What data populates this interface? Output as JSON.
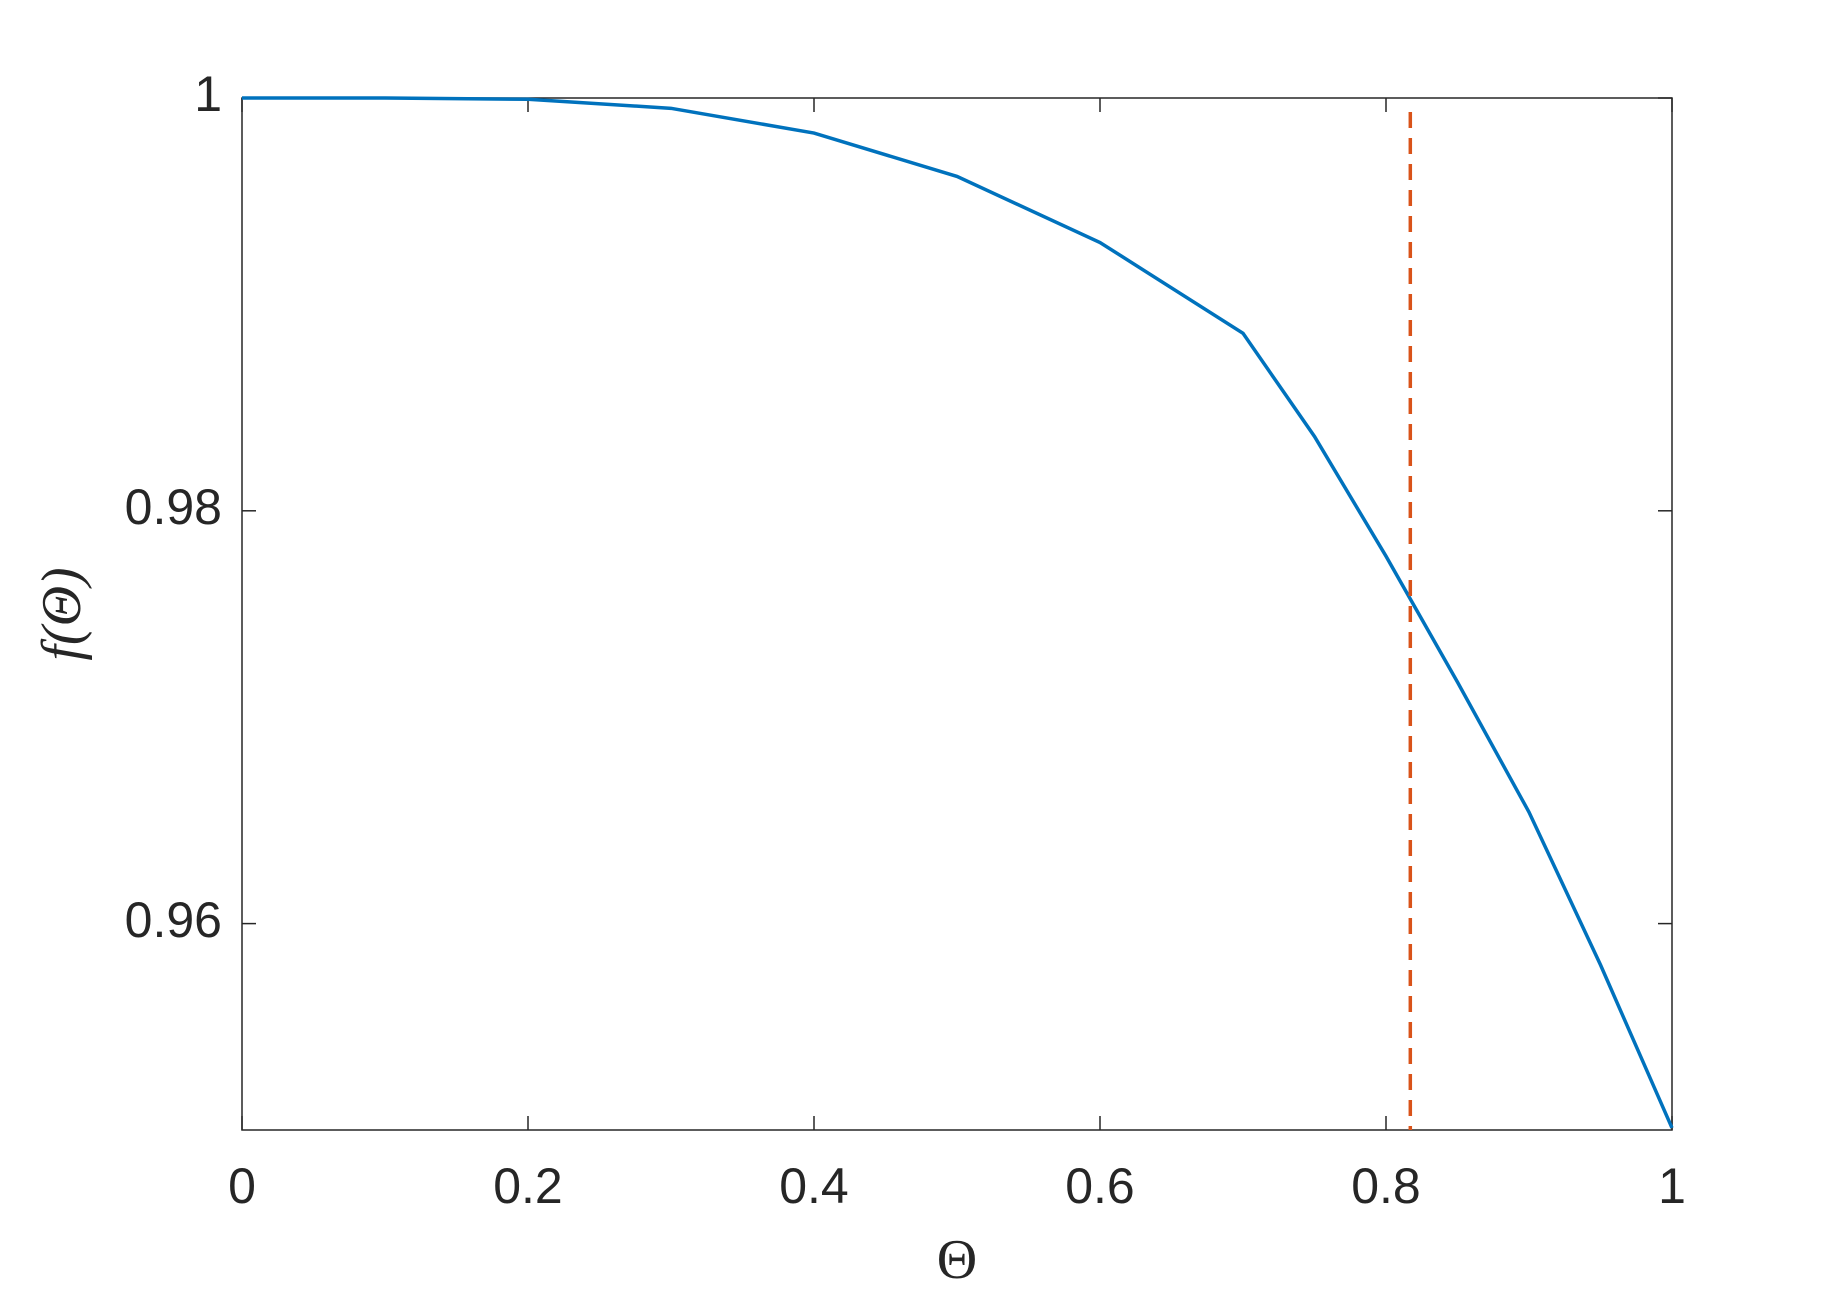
{
  "chart_data": {
    "type": "line",
    "x_label": "Θ",
    "y_label": "f(Θ)",
    "x": [
      0,
      0.1,
      0.2,
      0.3,
      0.4,
      0.5,
      0.6,
      0.7,
      0.75,
      0.8,
      0.85,
      0.9,
      0.95,
      1.0
    ],
    "series": [
      {
        "name": "f",
        "color": "#0072bd",
        "values": [
          1.0,
          1.0,
          0.99994,
          0.9995,
          0.9983,
          0.9962,
          0.993,
          0.9886,
          0.9836,
          0.9778,
          0.9717,
          0.9654,
          0.958,
          0.9501
        ]
      }
    ],
    "vline": {
      "x": 0.817,
      "color": "#d95319"
    },
    "xlim": [
      0,
      1
    ],
    "xticks": [
      0,
      0.2,
      0.4,
      0.6,
      0.8,
      1
    ],
    "ylim": [
      0.95,
      1
    ],
    "yticks": [
      0.96,
      0.98,
      1
    ],
    "grid": false
  }
}
